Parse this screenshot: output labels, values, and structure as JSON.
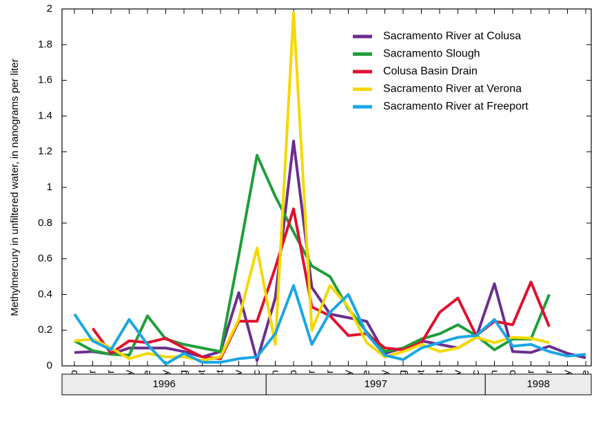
{
  "chart_data": {
    "type": "line",
    "ylabel": "Methylmercury in unfiltered water, in nanograms per liter",
    "categories": [
      "Feb",
      "Mar",
      "Apr",
      "May",
      "June",
      "July",
      "Aug",
      "Sept",
      "Oct",
      "Nov",
      "Dec",
      "Jan",
      "Feb",
      "Mar",
      "Apr",
      "May",
      "June",
      "July",
      "Aug",
      "Sept",
      "Oct",
      "Nov",
      "Dec",
      "Jan",
      "Feb",
      "Mar",
      "Apr",
      "May",
      "June"
    ],
    "year_groups": [
      "1996",
      "1997",
      "1998"
    ],
    "ylim": [
      0,
      2
    ],
    "yticks": [
      0,
      0.2,
      0.4,
      0.6,
      0.8,
      1,
      1.2,
      1.4,
      1.6,
      1.8,
      2
    ],
    "legend": "upper right",
    "series": [
      {
        "name": "Sacramento River at Colusa",
        "color": "#6b2f8e",
        "values": [
          0.075,
          0.08,
          0.065,
          0.1,
          0.1,
          0.1,
          0.08,
          0.05,
          0.08,
          0.41,
          0.03,
          0.38,
          1.26,
          0.44,
          0.29,
          0.27,
          0.25,
          0.07,
          0.1,
          0.14,
          0.12,
          0.1,
          0.16,
          0.46,
          0.08,
          0.075,
          0.11,
          0.07,
          0.045
        ]
      },
      {
        "name": "Sacramento Slough",
        "color": "#1f9e3a",
        "values": [
          0.14,
          0.085,
          0.065,
          0.06,
          0.28,
          0.15,
          0.12,
          0.1,
          0.08,
          0.62,
          1.18,
          0.95,
          0.75,
          0.56,
          0.5,
          0.32,
          0.19,
          0.08,
          0.1,
          0.15,
          0.18,
          0.23,
          0.17,
          0.09,
          0.15,
          0.15,
          0.4,
          null,
          null
        ]
      },
      {
        "name": "Colusa Basin Drain",
        "color": "#e0102f",
        "values": [
          null,
          0.21,
          0.07,
          0.14,
          0.13,
          0.155,
          0.1,
          0.05,
          0.04,
          0.25,
          0.25,
          0.55,
          0.88,
          0.33,
          0.28,
          0.17,
          0.18,
          0.1,
          0.09,
          0.13,
          0.3,
          0.38,
          0.17,
          0.25,
          0.23,
          0.47,
          0.22,
          null,
          null
        ]
      },
      {
        "name": "Sacramento River at Verona",
        "color": "#f5d800",
        "values": [
          0.14,
          0.15,
          0.1,
          0.04,
          0.07,
          0.05,
          0.05,
          0.03,
          0.05,
          0.26,
          0.66,
          0.12,
          1.98,
          0.2,
          0.45,
          0.33,
          0.13,
          0.05,
          0.08,
          0.12,
          0.08,
          0.1,
          0.16,
          0.13,
          0.16,
          0.155,
          0.13,
          null,
          null
        ]
      },
      {
        "name": "Sacramento River at Freeport",
        "color": "#1aa6e6",
        "values": [
          0.29,
          0.14,
          0.09,
          0.26,
          0.12,
          0.01,
          0.07,
          0.02,
          0.02,
          0.04,
          0.05,
          0.18,
          0.45,
          0.12,
          0.3,
          0.4,
          0.18,
          0.06,
          0.035,
          0.1,
          0.13,
          0.16,
          0.17,
          0.26,
          0.11,
          0.12,
          0.08,
          0.055,
          0.065
        ]
      }
    ]
  }
}
